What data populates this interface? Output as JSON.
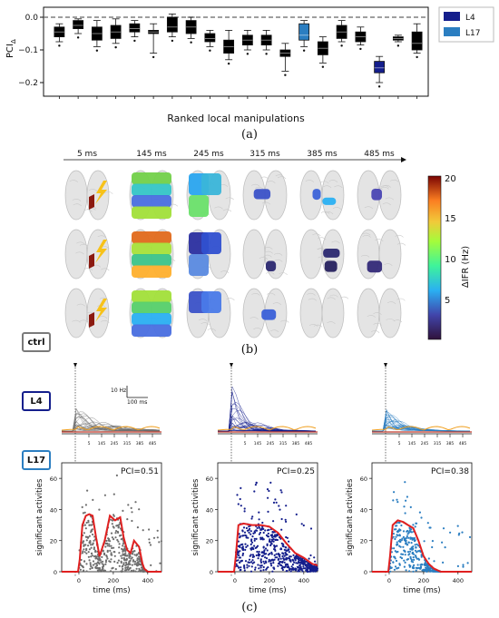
{
  "panel_a": {
    "caption": "(a)",
    "ylabel": "PCI",
    "ylabel_sub": "Δ",
    "xlabel": "Ranked local manipulations",
    "yticks": [
      "0.0",
      "−0.1",
      "−0.2"
    ],
    "legend": [
      {
        "label": "L4",
        "color": "#141e8c"
      },
      {
        "label": "L17",
        "color": "#2b7ec1"
      }
    ]
  },
  "panel_b": {
    "caption": "(b)",
    "time_labels": [
      "5 ms",
      "145 ms",
      "245 ms",
      "315 ms",
      "385 ms",
      "485 ms"
    ],
    "rows": [
      {
        "label": "ctrl",
        "color": "#7a7a7a"
      },
      {
        "label": "L4",
        "color": "#141e8c"
      },
      {
        "label": "L17",
        "color": "#2b7ec1"
      }
    ],
    "colorbar": {
      "label": "ΔIFR (Hz)",
      "ticks": [
        "20",
        "15",
        "10",
        "5"
      ]
    }
  },
  "panel_c": {
    "caption": "(c)",
    "scale_bar": {
      "y": "10 Hz",
      "x": "100 ms"
    },
    "trace_ticks": [
      "145",
      "245",
      "315",
      "385",
      "485"
    ],
    "trace_tick_start": "5",
    "ylabel": "significant activities",
    "xlabel": "time (ms)",
    "yticks": [
      "0",
      "20",
      "40",
      "60"
    ],
    "xticks": [
      "0",
      "200",
      "400"
    ],
    "panels": [
      {
        "pci": "PCI=0.51",
        "color": "#6e6e6e"
      },
      {
        "pci": "PCI=0.25",
        "color": "#141e8c"
      },
      {
        "pci": "PCI=0.38",
        "color": "#2b7ec1"
      }
    ]
  },
  "chart_data": [
    {
      "type": "box",
      "title": "",
      "xlabel": "Ranked local manipulations",
      "ylabel": "PCIΔ",
      "ylim": [
        -0.25,
        0.02
      ],
      "reference_line": 0.0,
      "boxes": [
        {
          "q1": -0.06,
          "median": -0.045,
          "q3": -0.03,
          "low": -0.075,
          "high": -0.02,
          "color": "#000000"
        },
        {
          "q1": -0.035,
          "median": -0.025,
          "q3": -0.01,
          "low": -0.05,
          "high": -0.005,
          "color": "#000000"
        },
        {
          "q1": -0.07,
          "median": -0.05,
          "q3": -0.03,
          "low": -0.09,
          "high": -0.01,
          "color": "#000000"
        },
        {
          "q1": -0.065,
          "median": -0.045,
          "q3": -0.025,
          "low": -0.08,
          "high": -0.005,
          "color": "#000000"
        },
        {
          "q1": -0.045,
          "median": -0.035,
          "q3": -0.02,
          "low": -0.06,
          "high": -0.01,
          "color": "#000000"
        },
        {
          "q1": -0.05,
          "median": -0.045,
          "q3": -0.04,
          "low": -0.11,
          "high": -0.02,
          "color": "#000000"
        },
        {
          "q1": -0.045,
          "median": -0.03,
          "q3": 0.0,
          "low": -0.06,
          "high": 0.01,
          "color": "#000000"
        },
        {
          "q1": -0.05,
          "median": -0.03,
          "q3": -0.01,
          "low": -0.065,
          "high": 0.0,
          "color": "#000000"
        },
        {
          "q1": -0.075,
          "median": -0.065,
          "q3": -0.05,
          "low": -0.09,
          "high": -0.04,
          "color": "#000000"
        },
        {
          "q1": -0.11,
          "median": -0.09,
          "q3": -0.07,
          "low": -0.13,
          "high": -0.04,
          "color": "#000000"
        },
        {
          "q1": -0.085,
          "median": -0.07,
          "q3": -0.055,
          "low": -0.1,
          "high": -0.04,
          "color": "#000000"
        },
        {
          "q1": -0.085,
          "median": -0.07,
          "q3": -0.055,
          "low": -0.1,
          "high": -0.04,
          "color": "#000000"
        },
        {
          "q1": -0.12,
          "median": -0.11,
          "q3": -0.1,
          "low": -0.165,
          "high": -0.08,
          "color": "#000000"
        },
        {
          "q1": -0.07,
          "median": -0.055,
          "q3": -0.02,
          "low": -0.09,
          "high": -0.01,
          "color": "#2b7ec1"
        },
        {
          "q1": -0.115,
          "median": -0.095,
          "q3": -0.075,
          "low": -0.14,
          "high": -0.06,
          "color": "#000000"
        },
        {
          "q1": -0.065,
          "median": -0.045,
          "q3": -0.025,
          "low": -0.075,
          "high": -0.01,
          "color": "#000000"
        },
        {
          "q1": -0.075,
          "median": -0.06,
          "q3": -0.045,
          "low": -0.085,
          "high": -0.03,
          "color": "#000000"
        },
        {
          "q1": -0.17,
          "median": -0.155,
          "q3": -0.135,
          "low": -0.2,
          "high": -0.12,
          "color": "#141e8c"
        },
        {
          "q1": -0.07,
          "median": -0.065,
          "q3": -0.06,
          "low": -0.075,
          "high": -0.055,
          "color": "#000000"
        },
        {
          "q1": -0.1,
          "median": -0.08,
          "q3": -0.045,
          "low": -0.11,
          "high": -0.02,
          "color": "#000000"
        }
      ]
    },
    {
      "type": "scatter",
      "title": "",
      "annotation": "PCI=0.51",
      "xlabel": "time (ms)",
      "ylabel": "significant activities",
      "xlim": [
        -100,
        480
      ],
      "ylim": [
        0,
        70
      ],
      "curve_x": [
        -100,
        -5,
        5,
        20,
        40,
        60,
        80,
        100,
        120,
        150,
        180,
        210,
        240,
        260,
        280,
        300,
        320,
        350,
        370,
        380,
        400,
        480
      ],
      "curve_y": [
        0,
        0,
        8,
        30,
        36,
        37,
        36,
        22,
        10,
        20,
        36,
        33,
        35,
        22,
        14,
        12,
        20,
        16,
        5,
        2,
        0,
        0
      ]
    },
    {
      "type": "scatter",
      "title": "",
      "annotation": "PCI=0.25",
      "xlabel": "time (ms)",
      "ylabel": "significant activities",
      "xlim": [
        -100,
        480
      ],
      "ylim": [
        0,
        70
      ],
      "curve_x": [
        -100,
        -5,
        5,
        20,
        50,
        100,
        150,
        200,
        250,
        300,
        350,
        400,
        450,
        480
      ],
      "curve_y": [
        0,
        0,
        10,
        30,
        31,
        30,
        30,
        29,
        25,
        18,
        12,
        9,
        5,
        4
      ]
    },
    {
      "type": "scatter",
      "title": "",
      "annotation": "PCI=0.38",
      "xlabel": "time (ms)",
      "ylabel": "significant activities",
      "xlim": [
        -100,
        480
      ],
      "ylim": [
        0,
        70
      ],
      "curve_x": [
        -100,
        -5,
        5,
        20,
        50,
        80,
        110,
        140,
        170,
        200,
        230,
        260,
        300,
        480
      ],
      "curve_y": [
        0,
        0,
        10,
        30,
        33,
        32,
        30,
        28,
        20,
        10,
        5,
        2,
        0,
        0
      ]
    }
  ]
}
